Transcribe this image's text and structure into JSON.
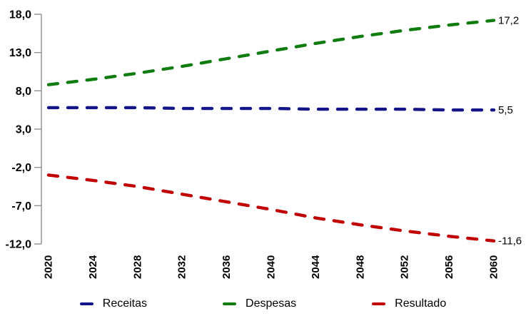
{
  "chart_data": {
    "type": "line",
    "title": "",
    "x": [
      2020,
      2024,
      2028,
      2032,
      2036,
      2040,
      2044,
      2048,
      2052,
      2056,
      2060
    ],
    "x_tick_labels": [
      "2020",
      "2024",
      "2028",
      "2032",
      "2036",
      "2040",
      "2044",
      "2048",
      "2052",
      "2056",
      "2060"
    ],
    "y_tick_labels": [
      "18,0",
      "13,0",
      "8,0",
      "3,0",
      "-2,0",
      "-7,0",
      "-12,0"
    ],
    "y_tick_values": [
      18,
      13,
      8,
      3,
      -2,
      -7,
      -12
    ],
    "ylim": [
      -12,
      18
    ],
    "xlim": [
      2020,
      2060
    ],
    "grid": false,
    "legend_position": "bottom",
    "line_style": "dashed",
    "series": [
      {
        "name": "Receitas",
        "color": "#15158a",
        "values": [
          5.8,
          5.8,
          5.8,
          5.7,
          5.7,
          5.7,
          5.6,
          5.6,
          5.6,
          5.5,
          5.5
        ],
        "end_label": "5,5"
      },
      {
        "name": "Despesas",
        "color": "#107c10",
        "values": [
          8.8,
          9.5,
          10.3,
          11.2,
          12.2,
          13.2,
          14.2,
          15.1,
          15.9,
          16.6,
          17.2
        ],
        "end_label": "17,2"
      },
      {
        "name": "Resultado",
        "color": "#c00000",
        "values": [
          -3.0,
          -3.7,
          -4.5,
          -5.5,
          -6.5,
          -7.5,
          -8.6,
          -9.5,
          -10.3,
          -11.0,
          -11.6
        ],
        "end_label": "-11,6"
      }
    ]
  },
  "colors": {
    "axis": "#8f8f8f",
    "text": "#000000",
    "background": "#ffffff"
  }
}
